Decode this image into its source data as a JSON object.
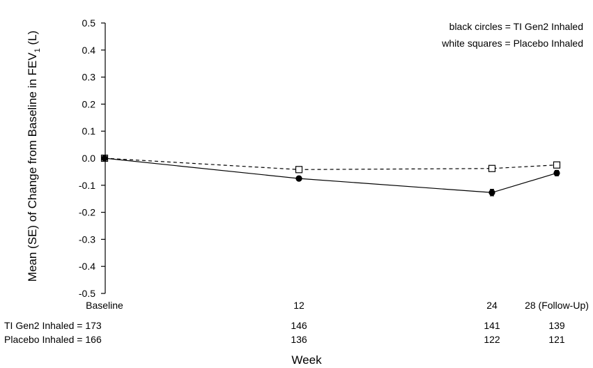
{
  "chart_data": {
    "type": "line",
    "ylabel_main": "Mean (SE) of Change from Baseline in FEV",
    "ylabel_sub": "1",
    "ylabel_unit": " (L)",
    "xlabel": "Week",
    "ylim": [
      -0.5,
      0.5
    ],
    "yticks": [
      "0.5",
      "0.4",
      "0.3",
      "0.2",
      "0.1",
      "0.0",
      "-0.1",
      "-0.2",
      "-0.3",
      "-0.4",
      "-0.5"
    ],
    "x": [
      0,
      12,
      24,
      28
    ],
    "xticklabels": [
      "Baseline",
      "12",
      "24",
      "28 (Follow-Up)"
    ],
    "legend": {
      "placement": "top-right",
      "entries": [
        "black circles = TI Gen2 Inhaled",
        "white squares = Placebo Inhaled"
      ]
    },
    "series": [
      {
        "name": "TI Gen2 Inhaled",
        "marker": "filled-circle",
        "line": "solid",
        "values": [
          0.0,
          -0.075,
          -0.127,
          -0.055
        ],
        "se": [
          0.0,
          0.008,
          0.012,
          0.01
        ],
        "n_label": "TI Gen2 Inhaled = 173",
        "n": [
          "146",
          "141",
          "139"
        ]
      },
      {
        "name": "Placebo Inhaled",
        "marker": "open-square",
        "line": "dashed",
        "values": [
          0.0,
          -0.042,
          -0.038,
          -0.025
        ],
        "se": [
          0.0,
          0.0,
          0.0,
          0.0
        ],
        "n_label": "Placebo Inhaled = 166",
        "n": [
          "136",
          "122",
          "121"
        ]
      }
    ]
  }
}
